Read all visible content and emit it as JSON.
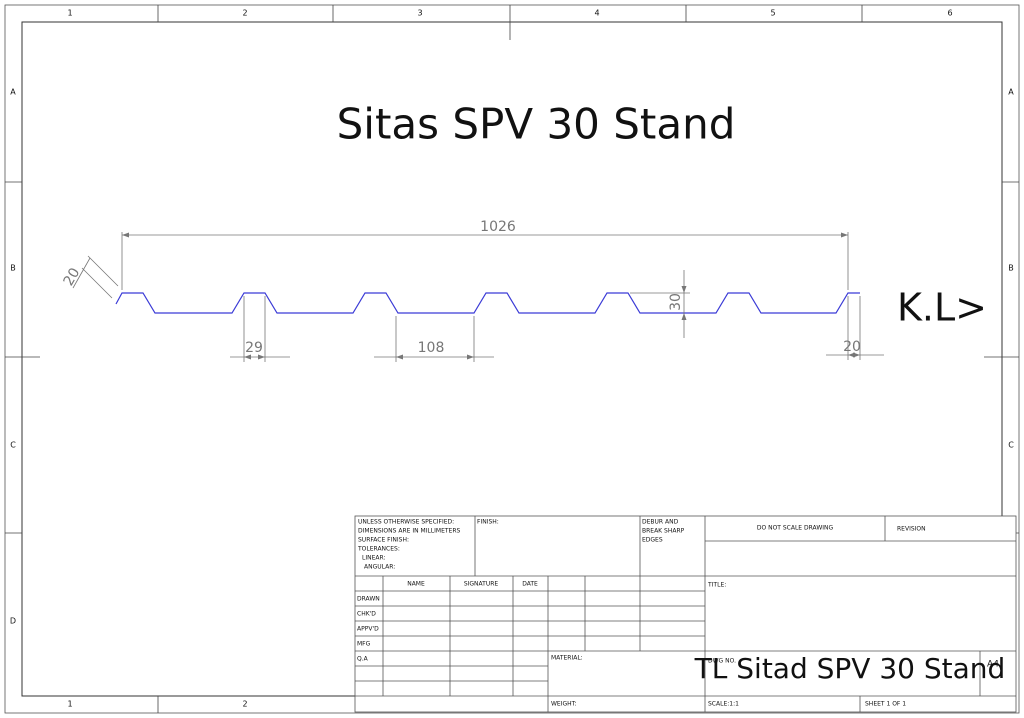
{
  "border": {
    "columns": [
      "1",
      "2",
      "3",
      "4",
      "5",
      "6"
    ],
    "rows": [
      "A",
      "B",
      "C",
      "D"
    ]
  },
  "title": "Sitas SPV 30 Stand",
  "dimensions": {
    "overall": 1026,
    "angled": 20,
    "height": 30,
    "top_width": 29,
    "pitch": 108,
    "end": 20
  },
  "note": "K.L>",
  "title_block": {
    "general_notes": [
      "UNLESS OTHERWISE SPECIFIED:",
      "DIMENSIONS ARE IN MILLIMETERS",
      "SURFACE FINISH:",
      "TOLERANCES:",
      "LINEAR:",
      "ANGULAR:"
    ],
    "finish": "FINISH:",
    "debur": [
      "DEBUR AND",
      "BREAK SHARP",
      "EDGES"
    ],
    "do_not_scale": "DO NOT SCALE DRAWING",
    "revision": "REVISION",
    "headers": [
      "NAME",
      "SIGNATURE",
      "DATE"
    ],
    "roles": [
      "DRAWN",
      "CHK'D",
      "APPV'D",
      "MFG",
      "Q.A"
    ],
    "material": "MATERIAL:",
    "title_label": "TITLE:",
    "dwg_no_label": "DWG NO.",
    "dwg_no": "TL Sitad SPV 30 Stand",
    "size": "A4",
    "weight": "WEIGHT:",
    "scale": "SCALE:1:1",
    "sheet": "SHEET 1 OF 1"
  }
}
